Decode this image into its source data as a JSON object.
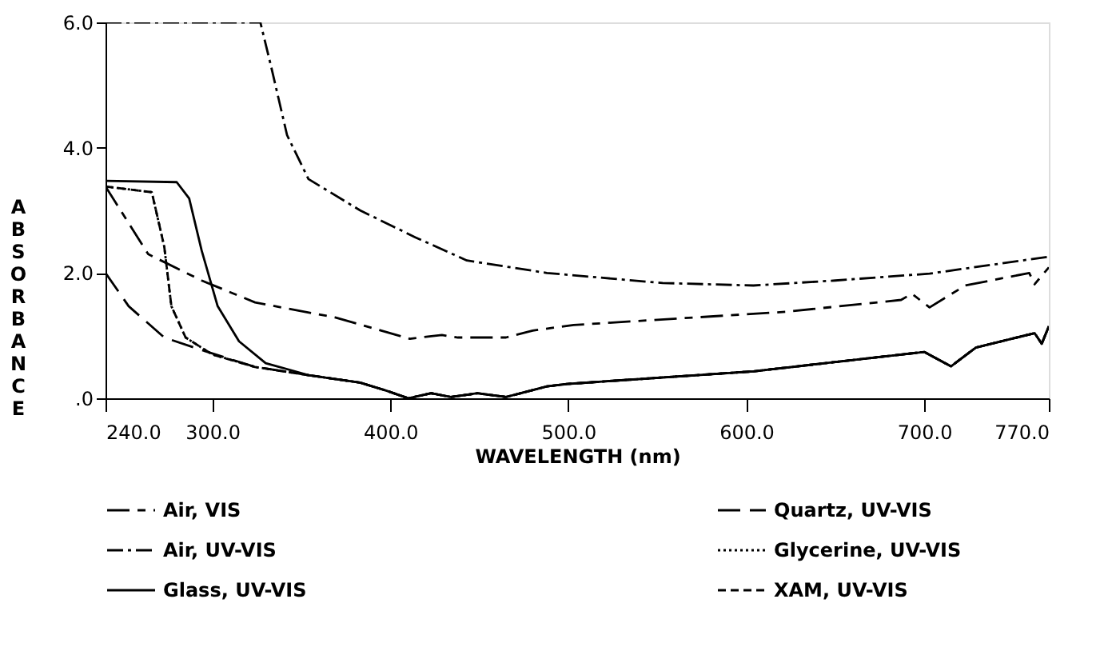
{
  "chart_data": {
    "type": "line",
    "xlabel": "WAVELENGTH (nm)",
    "ylabel": "ABSORBANCE",
    "xlim": [
      240,
      770
    ],
    "ylim": [
      0,
      6
    ],
    "xticks": [
      {
        "value": 240,
        "label": "240.0"
      },
      {
        "value": 300,
        "label": "300.0"
      },
      {
        "value": 400,
        "label": "400.0"
      },
      {
        "value": 500,
        "label": "500.0"
      },
      {
        "value": 600,
        "label": "600.0"
      },
      {
        "value": 700,
        "label": "700.0"
      },
      {
        "value": 770,
        "label": "770.0"
      }
    ],
    "yticks": [
      {
        "value": 0,
        "label": ".0"
      },
      {
        "value": 2,
        "label": "2.0"
      },
      {
        "value": 4,
        "label": "4.0"
      },
      {
        "value": 6,
        "label": "6.0"
      }
    ],
    "grid": false,
    "legend": "bottom",
    "series": [
      {
        "name": "Air,  VIS",
        "color": "#000000",
        "line_style": "longshort",
        "x": [
          240,
          264,
          294,
          324,
          369,
          411,
          429,
          438,
          465,
          480,
          503,
          622,
          687,
          693,
          703,
          723,
          759,
          762,
          770
        ],
        "values": [
          3.38,
          2.3,
          1.88,
          1.53,
          1.29,
          0.95,
          1.01,
          0.97,
          0.97,
          1.08,
          1.17,
          1.38,
          1.57,
          1.67,
          1.45,
          1.8,
          2.0,
          1.82,
          2.09
        ]
      },
      {
        "name": "Air,  UV-VIS",
        "color": "#000000",
        "line_style": "dashdot",
        "x": [
          240,
          327,
          333,
          342,
          354,
          383,
          414,
          443,
          488,
          553,
          604,
          650,
          703,
          770
        ],
        "values": [
          6.0,
          6.0,
          5.3,
          4.2,
          3.5,
          3.0,
          2.57,
          2.2,
          2.0,
          1.84,
          1.8,
          1.88,
          1.99,
          2.26
        ]
      },
      {
        "name": "Glass,  UV-VIS",
        "color": "#000000",
        "line_style": "solid",
        "x": [
          240,
          280,
          287,
          294,
          303,
          315,
          330,
          354,
          383,
          398,
          410,
          423,
          434,
          449,
          465,
          488,
          500,
          604,
          700,
          715,
          729,
          762,
          766,
          770
        ],
        "values": [
          3.47,
          3.45,
          3.19,
          2.36,
          1.47,
          0.91,
          0.56,
          0.37,
          0.25,
          0.12,
          0.0,
          0.08,
          0.02,
          0.08,
          0.02,
          0.19,
          0.23,
          0.43,
          0.74,
          0.51,
          0.81,
          1.04,
          0.87,
          1.15
        ]
      },
      {
        "name": "Quartz,  UV-VIS",
        "color": "#000000",
        "line_style": "longdash",
        "x": [
          240,
          253,
          273,
          294,
          324,
          354,
          383,
          398,
          410,
          423,
          434,
          449,
          465,
          488,
          500,
          604,
          700,
          715,
          729,
          762,
          766,
          770
        ],
        "values": [
          2.0,
          1.47,
          0.97,
          0.77,
          0.5,
          0.37,
          0.25,
          0.12,
          0.0,
          0.08,
          0.02,
          0.08,
          0.02,
          0.19,
          0.23,
          0.43,
          0.74,
          0.51,
          0.81,
          1.04,
          0.87,
          1.15
        ]
      },
      {
        "name": "Glycerine,  UV-VIS",
        "color": "#000000",
        "line_style": "dotted",
        "x": [
          240,
          266,
          273,
          277,
          285,
          300,
          324,
          354,
          383,
          398,
          410,
          423,
          434,
          449,
          465,
          488,
          500,
          604,
          700,
          715,
          729,
          762,
          766,
          770
        ],
        "values": [
          3.38,
          3.29,
          2.42,
          1.47,
          0.97,
          0.7,
          0.5,
          0.37,
          0.25,
          0.12,
          0.0,
          0.08,
          0.02,
          0.08,
          0.02,
          0.19,
          0.23,
          0.43,
          0.74,
          0.51,
          0.81,
          1.04,
          0.87,
          1.15
        ]
      },
      {
        "name": "XAM,   UV-VIS",
        "color": "#000000",
        "line_style": "dashed",
        "x": [
          240,
          266,
          273,
          277,
          285,
          300,
          324,
          354,
          383,
          398,
          410,
          423,
          434,
          449,
          465,
          488,
          500,
          604,
          700,
          715,
          729,
          762,
          766,
          770
        ],
        "values": [
          3.38,
          3.29,
          2.42,
          1.47,
          0.97,
          0.7,
          0.5,
          0.37,
          0.25,
          0.12,
          0.0,
          0.08,
          0.02,
          0.08,
          0.02,
          0.19,
          0.23,
          0.43,
          0.74,
          0.51,
          0.81,
          1.04,
          0.87,
          1.15
        ]
      }
    ]
  }
}
